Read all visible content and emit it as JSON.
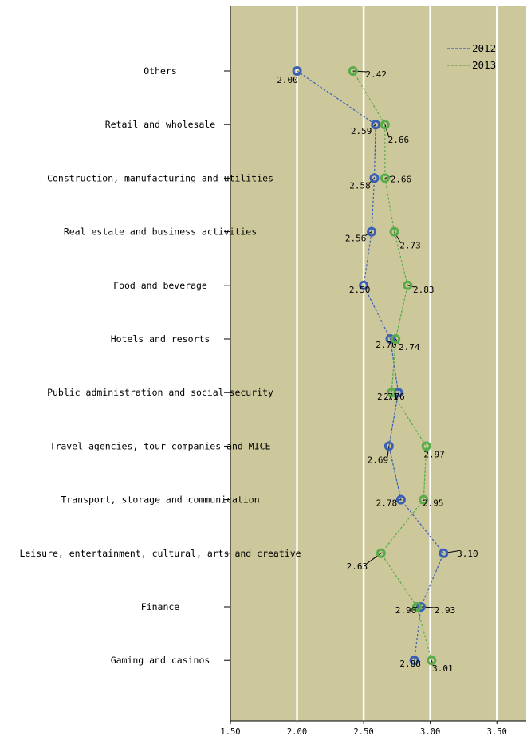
{
  "chart_data": {
    "type": "scatter",
    "orientation": "horizontal",
    "categories": [
      "Others",
      "Retail and wholesale",
      "Construction, manufacturing and utilities",
      "Real estate and business activities",
      "Food and beverage",
      "Hotels and resorts",
      "Public administration and social security",
      "Travel agencies, tour companies and MICE",
      "Transport, storage and communication",
      "Leisure, entertainment, cultural, arts and creative",
      "Finance",
      "Gaming and casinos"
    ],
    "series": [
      {
        "name": "2012",
        "color": "#3a5fb5",
        "values": [
          2.0,
          2.59,
          2.58,
          2.56,
          2.5,
          2.7,
          2.76,
          2.69,
          2.78,
          3.1,
          2.93,
          2.88
        ],
        "labels": [
          "2.00",
          "2.59",
          "2.58",
          "2.56",
          "2.50",
          "2.70",
          "2.76",
          "2.69",
          "2.78",
          "3.10",
          "2.93",
          "2.88"
        ]
      },
      {
        "name": "2013",
        "color": "#5aab4a",
        "values": [
          2.42,
          2.66,
          2.66,
          2.73,
          2.83,
          2.74,
          2.71,
          2.97,
          2.95,
          2.63,
          2.9,
          3.01
        ],
        "labels": [
          "2.42",
          "2.66",
          "2.66",
          "2.73",
          "2.83",
          "2.74",
          "2.71",
          "2.97",
          "2.95",
          "2.63",
          "2.90",
          "3.01"
        ]
      }
    ],
    "xlim": [
      1.5,
      3.72
    ],
    "xticks": [
      "1.50",
      "2.00",
      "2.50",
      "3.00",
      "3.50"
    ],
    "grid": true,
    "plot_background": "#cdc89b",
    "grid_color": "#ffffff",
    "legend_position": "top-right",
    "title": "",
    "xlabel": "",
    "ylabel": ""
  }
}
